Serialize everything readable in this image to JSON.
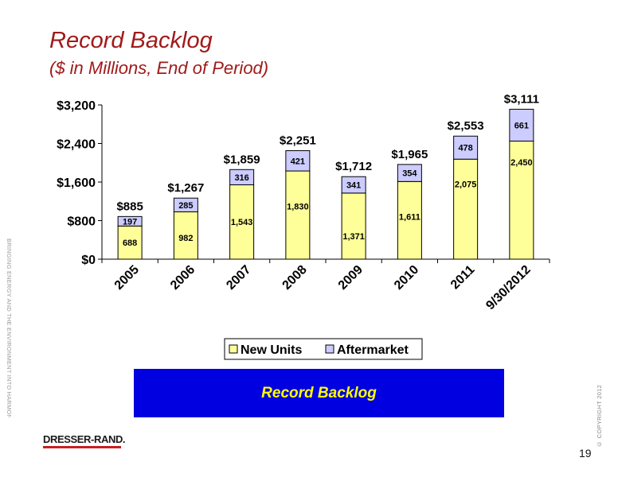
{
  "slide": {
    "title": "Record Backlog",
    "subtitle": "($ in Millions, End of Period)",
    "side_text": "BRINGING ENERGY AND THE ENVIRONMENT INTO HARMONY.®",
    "copyright": "© COPYRIGHT 2012",
    "banner_text": "Record Backlog",
    "logo_text": "DRESSER-RAND.",
    "page_number": "19"
  },
  "colors": {
    "title": "#a01a1a",
    "new_units": "#ffff99",
    "aftermarket": "#ccccff",
    "banner_bg": "#0000e0",
    "banner_text": "#ffff00",
    "logo_bar": "#c62020"
  },
  "chart_data": {
    "type": "bar",
    "stacked": true,
    "categories": [
      "2005",
      "2006",
      "2007",
      "2008",
      "2009",
      "2010",
      "2011",
      "9/30/2012"
    ],
    "series": [
      {
        "name": "New Units",
        "values": [
          688,
          982,
          1543,
          1830,
          1371,
          1611,
          2075,
          2450
        ],
        "labels": [
          "688",
          "982",
          "1,543",
          "1,830",
          "1,371",
          "1,611",
          "2,075",
          "2,450"
        ]
      },
      {
        "name": "Aftermarket",
        "values": [
          197,
          285,
          316,
          421,
          341,
          354,
          478,
          661
        ],
        "labels": [
          "197",
          "285",
          "316",
          "421",
          "341",
          "354",
          "478",
          "661"
        ]
      }
    ],
    "totals": [
      885,
      1267,
      1859,
      2251,
      1712,
      1965,
      2553,
      3111
    ],
    "total_labels": [
      "$885",
      "$1,267",
      "$1,859",
      "$2,251",
      "$1,712",
      "$1,965",
      "$2,553",
      "$3,111"
    ],
    "yticks": [
      0,
      800,
      1600,
      2400,
      3200
    ],
    "ytick_labels": [
      "$0",
      "$800",
      "$1,600",
      "$2,400",
      "$3,200"
    ],
    "ylim": [
      0,
      3200
    ],
    "legend_position": "bottom",
    "grid": false
  }
}
